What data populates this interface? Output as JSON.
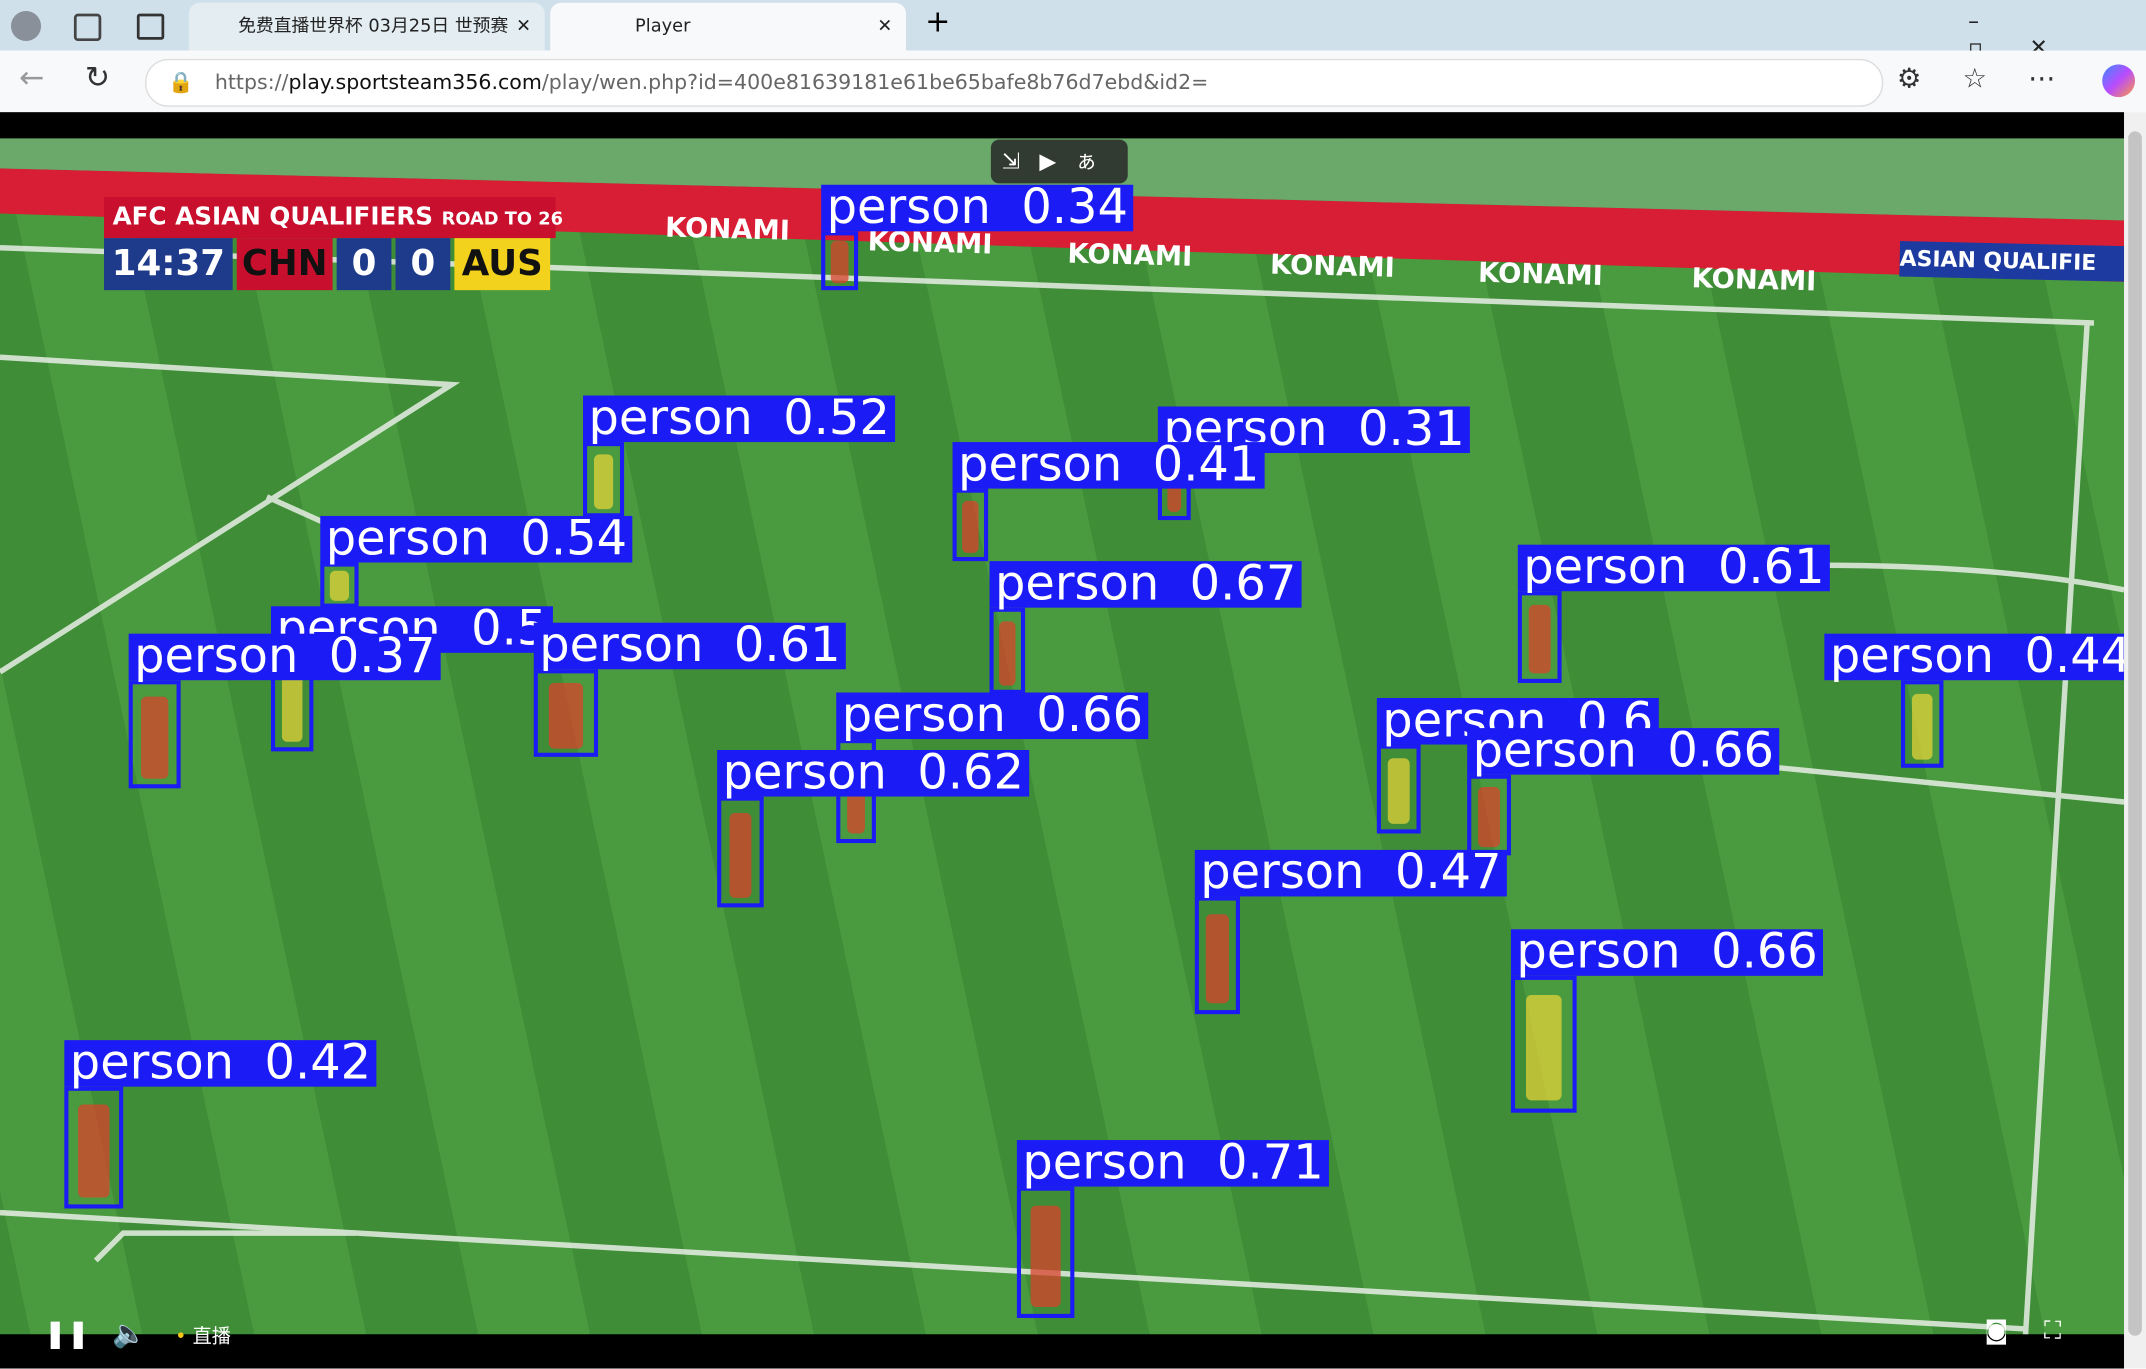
{
  "browser": {
    "tabs": [
      {
        "title": "免费直播世界杯 03月25日 世预赛"
      },
      {
        "title": "Player"
      }
    ],
    "url": {
      "scheme": "https://",
      "host": "play.sportsteam356.com",
      "path": "/play/wen.php?id=400e81639181e61be65bafe8b76d7ebd&id2="
    }
  },
  "scoreboard": {
    "competition": "AFC ASIAN QUALIFIERS",
    "tagline": "ROAD TO 26",
    "clock": "14:37",
    "home": "CHN",
    "home_score": 0,
    "away_score": 0,
    "away": "AUS"
  },
  "ad_boards": {
    "sponsor": "KONAMI",
    "banner": "ASIAN QUALIFIE"
  },
  "detections": [
    {
      "label": "person",
      "score": 0.34
    },
    {
      "label": "person",
      "score": 0.52
    },
    {
      "label": "person",
      "score": 0.31
    },
    {
      "label": "person",
      "score": 0.41
    },
    {
      "label": "person",
      "score": 0.54
    },
    {
      "label": "person",
      "score": 0.67
    },
    {
      "label": "person",
      "score": 0.61
    },
    {
      "label": "person",
      "score": 0.5
    },
    {
      "label": "person",
      "score": 0.37
    },
    {
      "label": "person",
      "score": 0.61
    },
    {
      "label": "person",
      "score": 0.44
    },
    {
      "label": "person",
      "score": 0.66
    },
    {
      "label": "person",
      "score": 0.62
    },
    {
      "label": "person",
      "score": 0.6
    },
    {
      "label": "person",
      "score": 0.66
    },
    {
      "label": "person",
      "score": 0.47
    },
    {
      "label": "person",
      "score": 0.66
    },
    {
      "label": "person",
      "score": 0.42
    },
    {
      "label": "person",
      "score": 0.71
    }
  ],
  "player": {
    "live": "直播"
  }
}
